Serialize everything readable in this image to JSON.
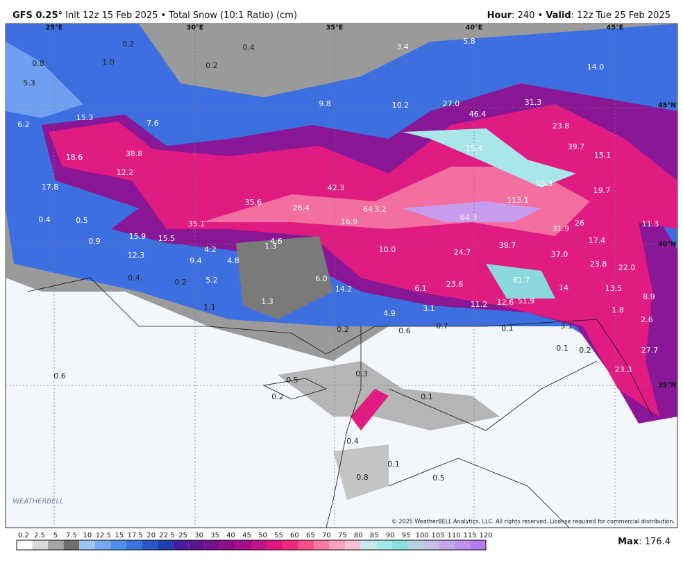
{
  "header": {
    "model": "GFS 0.25°",
    "description": "Init 12z 15 Feb 2025 • Total Snow (10:1 Ratio) (cm)",
    "hour_label": "Hour",
    "hour_value": ": 240 • ",
    "valid_label": "Valid",
    "valid_value": ": 12z Tue 25 Feb 2025"
  },
  "geo_labels": [
    "25°E",
    "30°E",
    "35°E",
    "40°E",
    "45°E",
    "45°N",
    "40°N",
    "35°N"
  ],
  "map_labels": [
    "0.2",
    "0.4",
    "3.4",
    "5.8",
    "0.8",
    "1.0",
    "0.2",
    "14.0",
    "5.3",
    "9.8",
    "10.2",
    "27.0",
    "31.3",
    "15.3",
    "46.4",
    "6.2",
    "7.6",
    "23.8",
    "18.6",
    "38.8",
    "39.7",
    "15.4",
    "15.1",
    "12.2",
    "17.8",
    "42.3",
    "55.3",
    "19.7",
    "35.6",
    "26.4",
    "64",
    "3.2",
    "113.1",
    "0.4",
    "0.5",
    "35.1",
    "16.9",
    "64.3",
    "26",
    "11.3",
    "15.9",
    "15.5",
    "31.9",
    "17.4",
    "0.9",
    "1.3",
    "4.6",
    "10.0",
    "24.7",
    "39.7",
    "37.0",
    "4.2",
    "12.3",
    "9.4",
    "4.8",
    "23.8",
    "22.0",
    "0.4",
    "0.2",
    "5.2",
    "6.0",
    "61.7",
    "14",
    "13.5",
    "23.6",
    "14.2",
    "6.1",
    "1.1",
    "1.3",
    "8.9",
    "12.6",
    "51.9",
    "11.2",
    "3.1",
    "1.8",
    "4.9",
    "2.6",
    "0.2",
    "0.6",
    "0.7",
    "0.1",
    "3.1",
    "0.1",
    "0.2",
    "27.7",
    "0.6",
    "0.3",
    "0.5",
    "23.3",
    "0.2",
    "0.1",
    "0.1",
    "0.5",
    "0.8",
    "0.4"
  ],
  "logo": "WEATHERBELL",
  "copyright": "© 2025 WeatherBELL Analytics, LLC. All rights reserved. License required for commercial distribution.",
  "colorbar": {
    "levels": [
      0.2,
      2.5,
      5,
      7.5,
      10,
      12.5,
      15,
      17.5,
      20,
      22.5,
      25,
      30,
      35,
      40,
      45,
      50,
      55,
      60,
      65,
      70,
      75,
      80,
      85,
      90,
      95,
      100,
      105,
      110,
      115,
      120
    ],
    "colors": [
      "#ffffff",
      "#d9d9d9",
      "#a6a6a6",
      "#707070",
      "#9ec4f5",
      "#76aaf0",
      "#5090e8",
      "#3a74da",
      "#2a58c8",
      "#2140b0",
      "#4a1ca0",
      "#5e1690",
      "#780f90",
      "#900d8c",
      "#a80e8c",
      "#c2128a",
      "#e0187e",
      "#f0287a",
      "#f5508c",
      "#f77aa2",
      "#f8a2bc",
      "#f5c0d2",
      "#c8e8ec",
      "#a0eaea",
      "#8ae0e0",
      "#b8d0e0",
      "#c8c0e8",
      "#c4a8ec",
      "#c090ee",
      "#b87cf0"
    ]
  },
  "max": {
    "label": "Max",
    "value": ": 176.4"
  }
}
